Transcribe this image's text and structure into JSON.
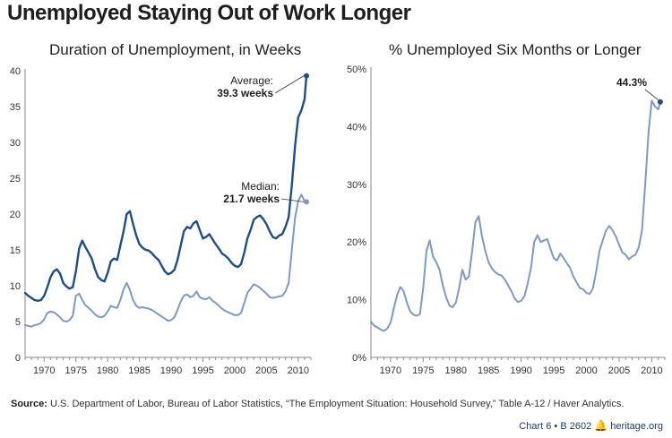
{
  "title": "Unemployed Staying Out of Work Longer",
  "source": {
    "label": "Source:",
    "text": "U.S. Department of Labor, Bureau of Labor Statistics, “The Employment Situation: Household Survey,”  Table A-12 / Haver Analytics."
  },
  "footer": {
    "chart_id": "Chart 6 • B 2602",
    "site": "heritage.org"
  },
  "colors": {
    "dark_series": "#1f4e85",
    "light_series": "#7f98c4",
    "axis": "#8a8a8a",
    "text": "#1e1e1e"
  },
  "chart_data": [
    {
      "type": "line",
      "title": "Duration of Unemployment, in Weeks",
      "xlabel": "",
      "ylabel": "",
      "xlim": [
        1967,
        2012
      ],
      "ylim": [
        0,
        40
      ],
      "xticks": [
        "1970",
        "1975",
        "1980",
        "1985",
        "1990",
        "1995",
        "2000",
        "2005",
        "2010"
      ],
      "yticks": [
        "0",
        "5",
        "10",
        "15",
        "20",
        "25",
        "30",
        "35",
        "40"
      ],
      "grid": false,
      "series": [
        {
          "id": "average",
          "name": "Average",
          "color": "#1f4e85",
          "x": [
            1967.0,
            1967.5,
            1968.0,
            1968.5,
            1969.0,
            1969.5,
            1970.0,
            1970.5,
            1971.0,
            1971.5,
            1972.0,
            1972.5,
            1973.0,
            1973.5,
            1974.0,
            1974.5,
            1975.0,
            1975.5,
            1976.0,
            1976.5,
            1977.0,
            1977.5,
            1978.0,
            1978.5,
            1979.0,
            1979.5,
            1980.0,
            1980.5,
            1981.0,
            1981.5,
            1982.0,
            1982.5,
            1983.0,
            1983.5,
            1984.0,
            1984.5,
            1985.0,
            1985.5,
            1986.0,
            1986.5,
            1987.0,
            1987.5,
            1988.0,
            1988.5,
            1989.0,
            1989.5,
            1990.0,
            1990.5,
            1991.0,
            1991.5,
            1992.0,
            1992.5,
            1993.0,
            1993.5,
            1994.0,
            1994.5,
            1995.0,
            1995.5,
            1996.0,
            1996.5,
            1997.0,
            1997.5,
            1998.0,
            1998.5,
            1999.0,
            1999.5,
            2000.0,
            2000.5,
            2001.0,
            2001.5,
            2002.0,
            2002.5,
            2003.0,
            2003.5,
            2004.0,
            2004.5,
            2005.0,
            2005.5,
            2006.0,
            2006.5,
            2007.0,
            2007.5,
            2008.0,
            2008.5,
            2009.0,
            2009.5,
            2010.0,
            2010.5,
            2011.0,
            2011.3
          ],
          "values": [
            9.0,
            8.6,
            8.3,
            8.0,
            7.9,
            8.0,
            8.6,
            9.8,
            11.2,
            12.0,
            12.3,
            11.7,
            10.4,
            9.9,
            9.6,
            9.8,
            12.0,
            15.2,
            16.3,
            15.4,
            14.6,
            13.8,
            12.3,
            11.2,
            10.8,
            10.6,
            11.8,
            13.4,
            13.8,
            13.6,
            15.6,
            17.6,
            20.0,
            20.4,
            18.6,
            17.0,
            15.8,
            15.3,
            15.0,
            14.9,
            14.5,
            14.0,
            13.6,
            12.8,
            12.0,
            11.6,
            11.8,
            12.2,
            13.6,
            15.6,
            17.6,
            18.2,
            18.0,
            18.7,
            19.0,
            17.8,
            16.6,
            16.8,
            17.2,
            16.5,
            15.8,
            15.2,
            14.5,
            14.2,
            13.8,
            13.2,
            12.8,
            12.6,
            13.0,
            14.6,
            16.6,
            17.8,
            19.2,
            19.6,
            19.8,
            19.3,
            18.6,
            17.6,
            16.8,
            16.6,
            17.0,
            17.2,
            18.2,
            19.6,
            24.0,
            29.5,
            33.5,
            34.5,
            36.0,
            39.3
          ]
        },
        {
          "id": "median",
          "name": "Median",
          "color": "#7f98c4",
          "x": [
            1967.0,
            1967.5,
            1968.0,
            1968.5,
            1969.0,
            1969.5,
            1970.0,
            1970.5,
            1971.0,
            1971.5,
            1972.0,
            1972.5,
            1973.0,
            1973.5,
            1974.0,
            1974.5,
            1975.0,
            1975.5,
            1976.0,
            1976.5,
            1977.0,
            1977.5,
            1978.0,
            1978.5,
            1979.0,
            1979.5,
            1980.0,
            1980.5,
            1981.0,
            1981.5,
            1982.0,
            1982.5,
            1983.0,
            1983.5,
            1984.0,
            1984.5,
            1985.0,
            1985.5,
            1986.0,
            1986.5,
            1987.0,
            1987.5,
            1988.0,
            1988.5,
            1989.0,
            1989.5,
            1990.0,
            1990.5,
            1991.0,
            1991.5,
            1992.0,
            1992.5,
            1993.0,
            1993.5,
            1994.0,
            1994.5,
            1995.0,
            1995.5,
            1996.0,
            1996.5,
            1997.0,
            1997.5,
            1998.0,
            1998.5,
            1999.0,
            1999.5,
            2000.0,
            2000.5,
            2001.0,
            2001.5,
            2002.0,
            2002.5,
            2003.0,
            2003.5,
            2004.0,
            2004.5,
            2005.0,
            2005.5,
            2006.0,
            2006.5,
            2007.0,
            2007.5,
            2008.0,
            2008.5,
            2009.0,
            2009.5,
            2010.0,
            2010.5,
            2011.0,
            2011.3
          ],
          "values": [
            4.5,
            4.4,
            4.3,
            4.5,
            4.6,
            4.8,
            5.3,
            6.2,
            6.4,
            6.3,
            6.0,
            5.6,
            5.1,
            5.0,
            5.2,
            5.8,
            8.6,
            8.9,
            8.0,
            7.3,
            6.9,
            6.5,
            6.0,
            5.7,
            5.6,
            5.8,
            6.4,
            7.2,
            7.0,
            6.9,
            8.0,
            9.5,
            10.4,
            9.4,
            8.0,
            7.2,
            6.9,
            7.0,
            6.9,
            6.8,
            6.6,
            6.3,
            6.0,
            5.7,
            5.4,
            5.1,
            5.2,
            5.6,
            6.6,
            7.8,
            8.6,
            8.8,
            8.4,
            8.6,
            9.2,
            8.4,
            8.2,
            8.1,
            8.4,
            7.9,
            7.6,
            7.2,
            6.8,
            6.5,
            6.3,
            6.1,
            5.9,
            5.9,
            6.2,
            7.6,
            9.0,
            9.6,
            10.2,
            10.0,
            9.7,
            9.3,
            8.9,
            8.4,
            8.3,
            8.4,
            8.5,
            8.6,
            9.2,
            10.4,
            15.0,
            19.5,
            21.8,
            22.7,
            21.8,
            21.7
          ]
        }
      ],
      "annotations": [
        {
          "series": "average",
          "label": "Average:",
          "value_text": "39.3 weeks"
        },
        {
          "series": "median",
          "label": "Median:",
          "value_text": "21.7 weeks"
        }
      ]
    },
    {
      "type": "line",
      "title": "% Unemployed Six Months or Longer",
      "xlabel": "",
      "ylabel": "",
      "xlim": [
        1967,
        2012
      ],
      "ylim": [
        0,
        50
      ],
      "xticks": [
        "1970",
        "1975",
        "1980",
        "1985",
        "1990",
        "1995",
        "2000",
        "2005",
        "2010"
      ],
      "yticks": [
        "0%",
        "10%",
        "20%",
        "30%",
        "40%",
        "50%"
      ],
      "grid": false,
      "series": [
        {
          "id": "share",
          "name": "",
          "color": "#7f98c4",
          "x": [
            1967.0,
            1967.5,
            1968.0,
            1968.5,
            1969.0,
            1969.5,
            1970.0,
            1970.5,
            1971.0,
            1971.5,
            1972.0,
            1972.5,
            1973.0,
            1973.5,
            1974.0,
            1974.5,
            1975.0,
            1975.5,
            1976.0,
            1976.5,
            1977.0,
            1977.5,
            1978.0,
            1978.5,
            1979.0,
            1979.5,
            1980.0,
            1980.5,
            1981.0,
            1981.5,
            1982.0,
            1982.5,
            1983.0,
            1983.5,
            1984.0,
            1984.5,
            1985.0,
            1985.5,
            1986.0,
            1986.5,
            1987.0,
            1987.5,
            1988.0,
            1988.5,
            1989.0,
            1989.5,
            1990.0,
            1990.5,
            1991.0,
            1991.5,
            1992.0,
            1992.5,
            1993.0,
            1993.5,
            1994.0,
            1994.5,
            1995.0,
            1995.5,
            1996.0,
            1996.5,
            1997.0,
            1997.5,
            1998.0,
            1998.5,
            1999.0,
            1999.5,
            2000.0,
            2000.5,
            2001.0,
            2001.5,
            2002.0,
            2002.5,
            2003.0,
            2003.5,
            2004.0,
            2004.5,
            2005.0,
            2005.5,
            2006.0,
            2006.5,
            2007.0,
            2007.5,
            2008.0,
            2008.5,
            2009.0,
            2009.5,
            2010.0,
            2010.5,
            2011.0,
            2011.3
          ],
          "values": [
            6.2,
            5.5,
            5.2,
            4.8,
            4.6,
            5.0,
            6.0,
            8.5,
            10.8,
            12.2,
            11.5,
            9.5,
            8.0,
            7.4,
            7.2,
            7.5,
            12.0,
            18.5,
            20.3,
            17.5,
            16.5,
            15.2,
            12.5,
            10.5,
            9.0,
            8.7,
            9.5,
            12.0,
            15.2,
            13.5,
            14.0,
            18.5,
            23.5,
            24.5,
            21.0,
            18.5,
            16.5,
            15.5,
            14.8,
            14.4,
            14.2,
            13.5,
            12.5,
            11.5,
            10.2,
            9.6,
            9.8,
            10.6,
            12.8,
            15.5,
            20.0,
            21.2,
            20.0,
            20.3,
            20.5,
            18.8,
            17.2,
            16.8,
            18.0,
            17.2,
            16.3,
            15.5,
            14.0,
            13.0,
            12.0,
            11.8,
            11.2,
            11.0,
            12.0,
            15.0,
            18.5,
            20.3,
            22.0,
            22.8,
            22.0,
            21.0,
            19.5,
            18.2,
            17.8,
            17.0,
            17.5,
            17.8,
            19.0,
            22.0,
            30.0,
            39.0,
            44.5,
            43.5,
            43.0,
            44.3
          ]
        }
      ],
      "annotations": [
        {
          "series": "share",
          "label": "",
          "value_text": "44.3%"
        }
      ]
    }
  ]
}
